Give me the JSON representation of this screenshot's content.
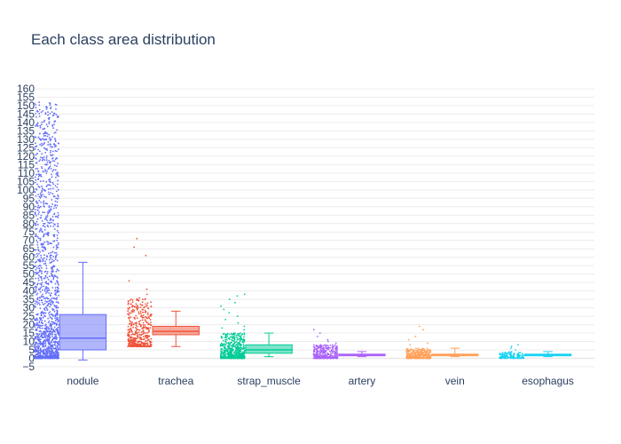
{
  "chart_data": {
    "type": "box",
    "title": "Each class area distribution",
    "xlabel": "",
    "ylabel": "",
    "ylim": [
      -5,
      160
    ],
    "ytick_step": 5,
    "grid": true,
    "legend": "none",
    "points": "all",
    "categories": [
      "nodule",
      "trachea",
      "strap_muscle",
      "artery",
      "vein",
      "esophagus"
    ],
    "series": [
      {
        "category": "nodule",
        "color": "#636efa",
        "min": -1,
        "q1": 5,
        "median": 12,
        "q3": 26,
        "max": 57,
        "point_range": [
          0,
          152
        ],
        "point_count": 1400,
        "outliers": [
          152,
          130,
          120,
          115,
          111,
          105,
          103,
          102,
          100,
          98,
          95,
          92,
          90,
          88,
          86,
          85,
          82,
          80,
          78,
          76,
          75,
          73,
          71,
          70,
          68,
          66,
          65,
          63
        ]
      },
      {
        "category": "trachea",
        "color": "#ef553b",
        "min": 7,
        "q1": 14,
        "median": 16,
        "q3": 19,
        "max": 28,
        "point_range": [
          7,
          36
        ],
        "point_count": 450,
        "outliers": [
          71,
          66,
          61,
          46,
          41,
          38
        ]
      },
      {
        "category": "strap_muscle",
        "color": "#00cc96",
        "min": 1,
        "q1": 3,
        "median": 5,
        "q3": 8,
        "max": 15,
        "point_range": [
          0,
          15
        ],
        "point_count": 500,
        "outliers": [
          38,
          37,
          35,
          33,
          31,
          29,
          27,
          25,
          23,
          21,
          19,
          18,
          17
        ]
      },
      {
        "category": "artery",
        "color": "#ab63fa",
        "min": 1,
        "q1": 1.5,
        "median": 2,
        "q3": 2.5,
        "max": 4,
        "point_range": [
          0,
          8
        ],
        "point_count": 320,
        "outliers": [
          17,
          15,
          13,
          11,
          10,
          9
        ]
      },
      {
        "category": "vein",
        "color": "#ffa15a",
        "min": 1,
        "q1": 1.5,
        "median": 2,
        "q3": 2.5,
        "max": 6,
        "point_range": [
          0,
          6
        ],
        "point_count": 330,
        "outliers": [
          19,
          17,
          13,
          11,
          9,
          8
        ]
      },
      {
        "category": "esophagus",
        "color": "#19d3f3",
        "min": 1,
        "q1": 1.5,
        "median": 2,
        "q3": 2.5,
        "max": 4,
        "point_range": [
          0,
          4
        ],
        "point_count": 140,
        "outliers": [
          8,
          7,
          6,
          5
        ]
      }
    ]
  }
}
